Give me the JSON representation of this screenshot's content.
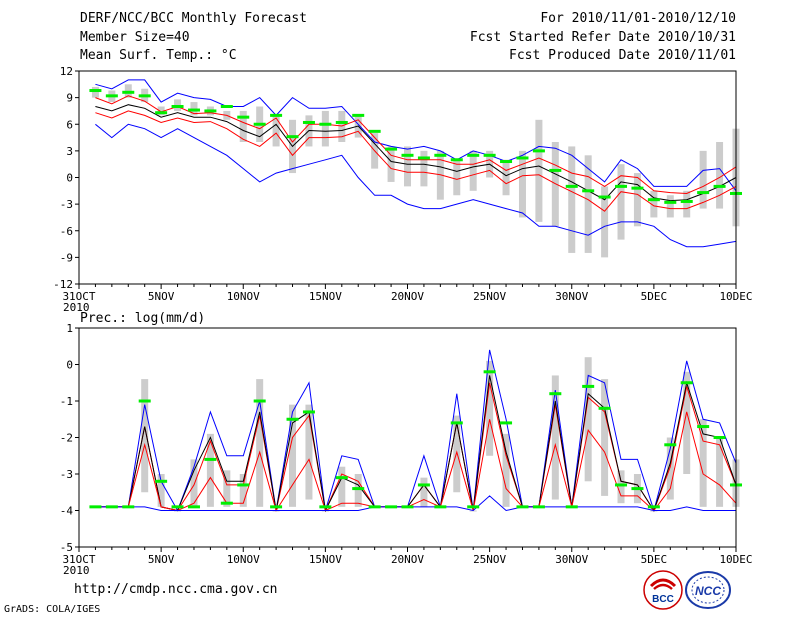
{
  "header": {
    "left": [
      "DERF/NCC/BCC Monthly Forecast",
      "Member Size=40",
      "Mean Surf. Temp.: °C"
    ],
    "right": [
      "For 2010/11/01-2010/12/10",
      "Fcst Started Refer Date 2010/10/31",
      "Fcst Produced Date 2010/11/01"
    ]
  },
  "footer": {
    "url": "http://cmdp.ncc.cma.gov.cn",
    "credit": "GrADS: COLA/IGES"
  },
  "logos": {
    "bcc": "BCC",
    "ncc": "NCC"
  },
  "chart_data": [
    {
      "type": "line",
      "title": "Mean Surf. Temp.: °C",
      "ylim": [
        -12,
        12
      ],
      "yticks": [
        12,
        9,
        6,
        3,
        0,
        -3,
        -6,
        -9,
        -12
      ],
      "xlabels": [
        "31OCT",
        "5NOV",
        "10NOV",
        "15NOV",
        "20NOV",
        "25NOV",
        "30NOV",
        "5DEC",
        "10DEC"
      ],
      "xlabel_year": "2010",
      "x_start_day": 0,
      "x_end_day": 40,
      "days": [
        1,
        2,
        3,
        4,
        5,
        6,
        7,
        8,
        9,
        10,
        11,
        12,
        13,
        14,
        15,
        16,
        17,
        18,
        19,
        20,
        21,
        22,
        23,
        24,
        25,
        26,
        27,
        28,
        29,
        30,
        31,
        32,
        33,
        34,
        35,
        36,
        37,
        38,
        39,
        40
      ],
      "series": [
        {
          "name": "max",
          "color": "#0000ff",
          "values": [
            10.5,
            10,
            11,
            11,
            8.5,
            9.5,
            9,
            8.8,
            8,
            8,
            9,
            7,
            9,
            7.8,
            7.8,
            8,
            6,
            4,
            3.5,
            3.2,
            3.5,
            3,
            2,
            3,
            2.5,
            1.8,
            2.5,
            3.5,
            3.3,
            2.5,
            1,
            -0.5,
            2,
            1,
            -1,
            -1,
            -1,
            0.8,
            1,
            -1.5
          ]
        },
        {
          "name": "upper",
          "color": "#ff0000",
          "values": [
            9,
            8.3,
            9.2,
            8.6,
            7.4,
            8,
            7.2,
            7.3,
            7,
            6.2,
            5.5,
            6.7,
            4,
            6,
            6,
            5.8,
            6.5,
            4.5,
            2.5,
            2,
            2,
            2,
            1.5,
            1.5,
            2,
            0.8,
            1.5,
            2.2,
            1.4,
            0.5,
            0.1,
            -1,
            0.2,
            0,
            -1.5,
            -1.7,
            -1.8,
            -1,
            0,
            1.2
          ]
        },
        {
          "name": "mean",
          "color": "#000000",
          "values": [
            8,
            7.5,
            8.2,
            7.8,
            6.8,
            7.3,
            6.8,
            6.8,
            6.3,
            5.3,
            4.6,
            6,
            3.5,
            5.3,
            5.2,
            5.3,
            5.8,
            3.8,
            1.8,
            1.5,
            1.5,
            1.2,
            0.7,
            1.2,
            1.5,
            0.2,
            1,
            1.3,
            0.4,
            -0.5,
            -1.5,
            -2.5,
            -0.5,
            -0.8,
            -2.3,
            -2.6,
            -2.5,
            -1.8,
            -1,
            0
          ]
        },
        {
          "name": "lower",
          "color": "#ff0000",
          "values": [
            7.3,
            6.7,
            7.5,
            7,
            6.2,
            6.7,
            6.2,
            6.3,
            5.5,
            4.3,
            3.5,
            5,
            2.5,
            4.5,
            4.5,
            4.6,
            5.2,
            3,
            1,
            0.6,
            0.6,
            0.3,
            -0.2,
            0.3,
            0.8,
            -0.7,
            0.2,
            0.3,
            -0.7,
            -1.6,
            -2.5,
            -3.8,
            -1.6,
            -1.9,
            -3.2,
            -3.5,
            -3.5,
            -2.8,
            -2,
            -1
          ]
        },
        {
          "name": "min",
          "color": "#0000ff",
          "values": [
            6,
            4.5,
            6,
            5.5,
            4.5,
            5.5,
            4.5,
            3.5,
            2.5,
            1,
            -0.5,
            0.5,
            1,
            1.5,
            2,
            2.5,
            0,
            -2,
            -2,
            -3,
            -3.5,
            -3.5,
            -3,
            -2.5,
            -3,
            -3.5,
            -4,
            -5.5,
            -5.5,
            -6,
            -6.5,
            -5.5,
            -5,
            -5,
            -5.5,
            -7,
            -7.8,
            -7.8,
            -7.5,
            -7.2
          ]
        }
      ],
      "bars": {
        "color": "#cccccc",
        "low": [
          9,
          8.5,
          9,
          8.5,
          7,
          7.5,
          7,
          7,
          6.5,
          4,
          4,
          3.5,
          0.5,
          3.5,
          3.5,
          4,
          4.5,
          1,
          -0.5,
          -1,
          -1,
          -2.5,
          -2,
          -1.5,
          0,
          -2,
          -4.5,
          -5,
          -5.5,
          -8.5,
          -8.5,
          -9,
          -7,
          -5.5,
          -4.5,
          -4.5,
          -4.5,
          -3.5,
          -3.5,
          -5.5
        ],
        "high": [
          10.2,
          9.8,
          10.5,
          10,
          8,
          8.8,
          8.5,
          8,
          7.5,
          7.5,
          8,
          7,
          6.5,
          7,
          7.5,
          7.5,
          7,
          5,
          3.5,
          3.5,
          3,
          3,
          2,
          3,
          3,
          2,
          3,
          6.5,
          4,
          3.5,
          2.5,
          -1,
          1.5,
          0.5,
          -1.5,
          -2,
          -1.5,
          3,
          4,
          5.5
        ]
      },
      "observed": {
        "name": "observed",
        "color": "#00ee00",
        "values": [
          9.8,
          9.2,
          9.6,
          9.2,
          7.3,
          8,
          7.6,
          7.5,
          8,
          6.8,
          6,
          7,
          4.6,
          6.2,
          6,
          6.2,
          7,
          5.2,
          3.2,
          2.5,
          2.2,
          2.5,
          2,
          2.5,
          2.5,
          1.8,
          2.2,
          3,
          0.8,
          -1,
          -1.5,
          -2.2,
          -1,
          -1.2,
          -2.5,
          -2.8,
          -2.7,
          -1.7,
          -1,
          -1.8
        ]
      }
    },
    {
      "type": "line",
      "title": "Prec.: log(mm/d)",
      "ylim": [
        -5,
        1
      ],
      "yticks": [
        1,
        0,
        -1,
        -2,
        -3,
        -4,
        -5
      ],
      "xlabels": [
        "31OCT",
        "5NOV",
        "10NOV",
        "15NOV",
        "20NOV",
        "25NOV",
        "30NOV",
        "5DEC",
        "10DEC"
      ],
      "xlabel_year": "2010",
      "x_start_day": 0,
      "x_end_day": 40,
      "days": [
        1,
        2,
        3,
        4,
        5,
        6,
        7,
        8,
        9,
        10,
        11,
        12,
        13,
        14,
        15,
        16,
        17,
        18,
        19,
        20,
        21,
        22,
        23,
        24,
        25,
        26,
        27,
        28,
        29,
        30,
        31,
        32,
        33,
        34,
        35,
        36,
        37,
        38,
        39,
        40
      ],
      "series": [
        {
          "name": "max",
          "color": "#0000ff",
          "values": [
            -3.9,
            -3.9,
            -3.9,
            -1.1,
            -3.2,
            -4,
            -2.8,
            -1.3,
            -2.5,
            -2.5,
            -1,
            -4,
            -1.3,
            -0.5,
            -4,
            -2.5,
            -2.6,
            -3.9,
            -3.9,
            -3.9,
            -2.5,
            -3.9,
            -0.8,
            -4,
            0.4,
            -1.5,
            -3.9,
            -3.9,
            -0.7,
            -3.9,
            -0.3,
            -0.5,
            -2.6,
            -2.6,
            -4,
            -2.3,
            0.1,
            -1.5,
            -1.6,
            -2.7
          ]
        },
        {
          "name": "upper",
          "color": "#ff0000",
          "values": [
            -3.9,
            -3.9,
            -3.9,
            -1.7,
            -3.9,
            -4,
            -3.3,
            -2.1,
            -3.3,
            -3.3,
            -1.4,
            -4,
            -2,
            -1.4,
            -4,
            -3,
            -3.2,
            -3.9,
            -3.9,
            -3.9,
            -3.3,
            -3.9,
            -1.6,
            -4,
            -0.5,
            -2.5,
            -3.9,
            -3.9,
            -1.1,
            -3.9,
            -0.9,
            -1.3,
            -3.2,
            -3.3,
            -4,
            -2.8,
            -0.6,
            -2.1,
            -2.2,
            -3.3
          ]
        },
        {
          "name": "mean",
          "color": "#000000",
          "values": [
            -3.9,
            -3.9,
            -3.9,
            -1.7,
            -3.9,
            -4,
            -2.9,
            -2,
            -3.2,
            -3.2,
            -1.3,
            -4,
            -1.6,
            -1.3,
            -4,
            -3.1,
            -3.3,
            -3.9,
            -3.9,
            -3.9,
            -3.3,
            -3.9,
            -1.6,
            -4,
            -0.3,
            -2.4,
            -3.9,
            -3.9,
            -1,
            -3.9,
            -0.8,
            -1.2,
            -3.2,
            -3.3,
            -4,
            -2.7,
            -0.5,
            -1.9,
            -2,
            -3.3
          ]
        },
        {
          "name": "lower",
          "color": "#ff0000",
          "values": [
            -3.9,
            -3.9,
            -3.9,
            -2.2,
            -3.9,
            -4,
            -3.8,
            -3.1,
            -3.8,
            -3.8,
            -2.4,
            -4,
            -3.3,
            -2.6,
            -4,
            -3.8,
            -3.8,
            -3.9,
            -3.9,
            -3.9,
            -3.7,
            -3.9,
            -2.4,
            -4,
            -1.5,
            -3.4,
            -3.9,
            -3.9,
            -2.2,
            -3.9,
            -1.8,
            -2.4,
            -3.6,
            -3.6,
            -4,
            -3.4,
            -1.3,
            -3,
            -3.3,
            -3.8
          ]
        },
        {
          "name": "min",
          "color": "#0000ff",
          "values": [
            -3.9,
            -3.9,
            -3.9,
            -3.9,
            -4,
            -4,
            -4,
            -4,
            -4,
            -4,
            -4,
            -4,
            -4,
            -4,
            -4,
            -4,
            -4,
            -3.9,
            -3.9,
            -3.9,
            -3.9,
            -3.9,
            -3.9,
            -4,
            -3.6,
            -4,
            -3.9,
            -3.9,
            -3.9,
            -3.9,
            -3.9,
            -3.9,
            -3.9,
            -3.9,
            -4,
            -4,
            -3.9,
            -4,
            -4,
            -4
          ]
        }
      ],
      "bars": {
        "color": "#cccccc",
        "low": [
          -3.9,
          -3.9,
          -3.9,
          -3.5,
          -3.9,
          -4,
          -3.9,
          -3.9,
          -3.9,
          -3.9,
          -3.9,
          -4,
          -3.9,
          -3.7,
          -4,
          -3.9,
          -3.9,
          -3.9,
          -3.9,
          -3.9,
          -3.9,
          -3.9,
          -3.5,
          -4,
          -2.5,
          -3.9,
          -3.9,
          -3.9,
          -3.7,
          -3.9,
          -3.2,
          -3.6,
          -3.8,
          -3.8,
          -4,
          -3.7,
          -3,
          -3.9,
          -3.9,
          -3.9
        ],
        "high": [
          -3.9,
          -3.9,
          -3.9,
          -0.4,
          -3,
          -4,
          -2.6,
          -1.9,
          -2.9,
          -3,
          -0.4,
          -4,
          -1.1,
          -1.1,
          -4,
          -2.8,
          -3,
          -3.9,
          -3.9,
          -3.9,
          -3.1,
          -3.9,
          -1.4,
          -4,
          0.1,
          -1.9,
          -3.9,
          -3.9,
          -0.3,
          -3.9,
          0.2,
          -0.4,
          -2.9,
          -3,
          -4,
          -2,
          -0.2,
          -1.5,
          -2,
          -2.6
        ]
      },
      "observed": {
        "name": "observed",
        "color": "#00ee00",
        "values": [
          -3.9,
          -3.9,
          -3.9,
          -1,
          -3.2,
          -3.9,
          -3.9,
          -2.6,
          -3.8,
          -3.3,
          -1,
          -3.9,
          -1.5,
          -1.3,
          -3.9,
          -3.1,
          -3.4,
          -3.9,
          -3.9,
          -3.9,
          -3.3,
          -3.9,
          -1.6,
          -3.9,
          -0.2,
          -1.6,
          -3.9,
          -3.9,
          -0.8,
          -3.9,
          -0.6,
          -1.2,
          -3.3,
          -3.4,
          -3.9,
          -2.2,
          -0.5,
          -1.7,
          -2,
          -3.3
        ]
      }
    }
  ]
}
